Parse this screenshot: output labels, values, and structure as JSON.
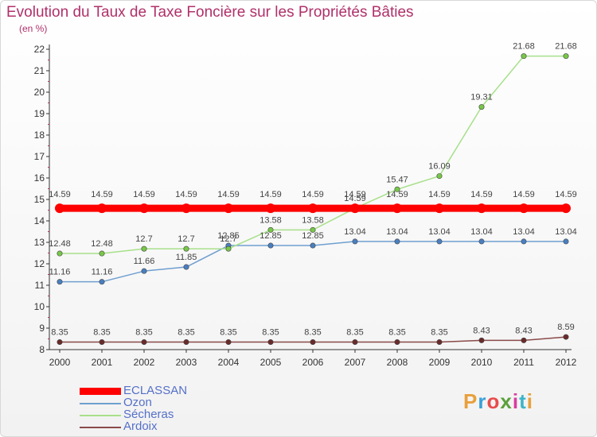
{
  "title": "Evolution du Taux de Taxe Foncière sur les Propriétés Bâties",
  "unit_label": "(en %)",
  "brand": {
    "text": "Proxiti",
    "colors": [
      "#e8a03c",
      "#3aa0d8",
      "#e84c4c",
      "#5aa03c",
      "#d83ca0",
      "#3cb4c8",
      "#e8a03c"
    ]
  },
  "chart_data": {
    "type": "line",
    "title": "Evolution du Taux de Taxe Foncière sur les Propriétés Bâties",
    "ylabel": "(en %)",
    "xlabel": "",
    "ylim": [
      8,
      22
    ],
    "yticks": [
      8,
      9,
      10,
      11,
      12,
      13,
      14,
      15,
      16,
      17,
      18,
      19,
      20,
      21,
      22
    ],
    "grid": false,
    "legend_position": "bottom-left",
    "x": [
      "2000",
      "2001",
      "2002",
      "2003",
      "2004",
      "2005",
      "2006",
      "2007",
      "2008",
      "2009",
      "2010",
      "2011",
      "2012"
    ],
    "series": [
      {
        "name": "ECLASSAN",
        "color": "#ff0000",
        "marker": "#ff0000",
        "values": [
          14.59,
          14.59,
          14.59,
          14.59,
          14.59,
          14.59,
          14.59,
          14.59,
          14.59,
          14.59,
          14.59,
          14.59,
          14.59
        ],
        "labels": [
          "14.59",
          "14.59",
          "14.59",
          "14.59",
          "14.59",
          "14.59",
          "14.59",
          "14.59",
          "14.59",
          "14.59",
          "14.59",
          "14.59",
          "14.59"
        ]
      },
      {
        "name": "Ozon",
        "color": "#6f9fd0",
        "marker": "#4a7fc0",
        "values": [
          11.16,
          11.16,
          11.66,
          11.85,
          12.85,
          12.85,
          12.85,
          13.04,
          13.04,
          13.04,
          13.04,
          13.04,
          13.04
        ],
        "labels": [
          "11.16",
          "11.16",
          "11.66",
          "11.85",
          "12.85",
          "12.85",
          "12.85",
          "13.04",
          "13.04",
          "13.04",
          "13.04",
          "13.04",
          "13.04"
        ]
      },
      {
        "name": "Sécheras",
        "color": "#a8e08a",
        "marker": "#78c848",
        "values": [
          12.48,
          12.48,
          12.7,
          12.7,
          12.7,
          13.58,
          13.58,
          14.59,
          15.47,
          16.09,
          19.31,
          21.68,
          21.68
        ],
        "labels": [
          "12.48",
          "12.48",
          "12.7",
          "12.7",
          "12.7",
          "13.58",
          "13.58",
          "14.59",
          "15.47",
          "16.09",
          "19.31",
          "21.68",
          "21.68"
        ]
      },
      {
        "name": "Ardoix",
        "color": "#8a4a4a",
        "marker": "#6a2a2a",
        "values": [
          8.35,
          8.35,
          8.35,
          8.35,
          8.35,
          8.35,
          8.35,
          8.35,
          8.35,
          8.35,
          8.43,
          8.43,
          8.59
        ],
        "labels": [
          "8.35",
          "8.35",
          "8.35",
          "8.35",
          "8.35",
          "8.35",
          "8.35",
          "8.35",
          "8.35",
          "8.35",
          "8.43",
          "8.43",
          "8.59"
        ]
      }
    ]
  }
}
